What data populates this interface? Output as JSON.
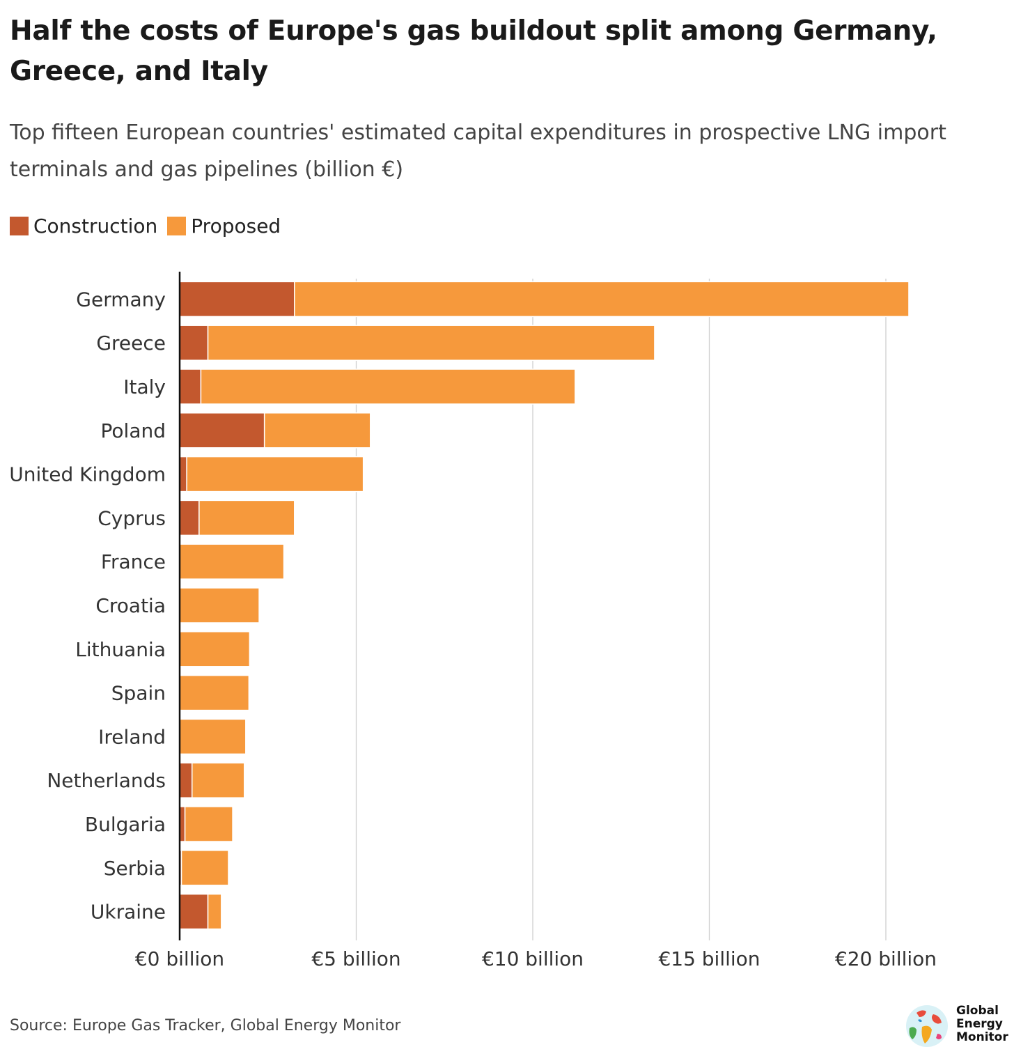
{
  "title": "Half the costs of Europe's gas buildout split among Germany, Greece, and Italy",
  "subtitle": "Top fifteen European countries' estimated capital expenditures in prospective LNG import terminals and gas pipelines (billion €)",
  "legend": [
    {
      "label": "Construction",
      "color": "#c3582e"
    },
    {
      "label": "Proposed",
      "color": "#f6993c"
    }
  ],
  "source": "Source: Europe Gas Tracker, Global Energy Monitor",
  "logo": {
    "line1": "Global",
    "line2": "Energy",
    "line3": "Monitor"
  },
  "chart_data": {
    "type": "bar",
    "orientation": "horizontal",
    "stacked": true,
    "categories": [
      "Germany",
      "Greece",
      "Italy",
      "Poland",
      "United Kingdom",
      "Cyprus",
      "France",
      "Croatia",
      "Lithuania",
      "Spain",
      "Ireland",
      "Netherlands",
      "Bulgaria",
      "Serbia",
      "Ukraine"
    ],
    "series": [
      {
        "name": "Construction",
        "color": "#c3582e",
        "values": [
          3.25,
          0.8,
          0.6,
          2.4,
          0.2,
          0.55,
          0,
          0,
          0,
          0,
          0,
          0.35,
          0.15,
          0.05,
          0.8
        ]
      },
      {
        "name": "Proposed",
        "color": "#f6993c",
        "values": [
          17.4,
          12.65,
          10.6,
          3.0,
          5.0,
          2.7,
          2.95,
          2.25,
          1.98,
          1.96,
          1.87,
          1.48,
          1.35,
          1.33,
          0.38
        ]
      }
    ],
    "xlim": [
      0,
      22.5
    ],
    "xticks": [
      0,
      5,
      10,
      15,
      20
    ],
    "xtick_labels": [
      "€0 billion",
      "€5 billion",
      "€10 billion",
      "€15 billion",
      "€20 billion"
    ],
    "grid": "vertical",
    "legend_position": "top-left"
  }
}
